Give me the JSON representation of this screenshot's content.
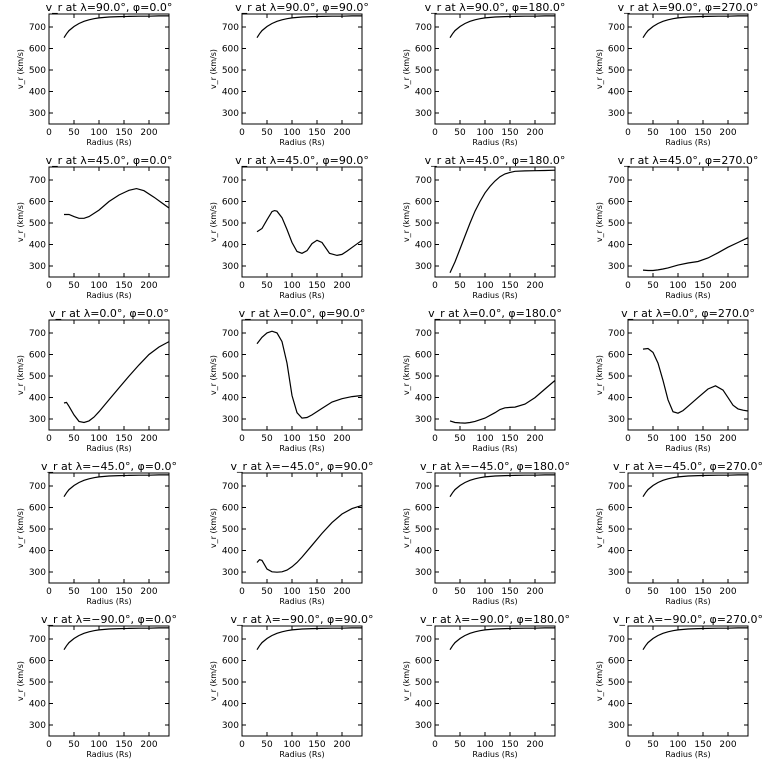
{
  "chart_data": [
    {
      "type": "line",
      "title": "v_r at λ=90.0°, φ=0.0°",
      "xlabel": "Radius (Rs)",
      "ylabel": "v_r (km/s)",
      "xlim": [
        0,
        240
      ],
      "ylim": [
        250,
        760
      ],
      "xticks": [
        0,
        50,
        100,
        150,
        200
      ],
      "yticks": [
        300,
        400,
        500,
        600,
        700
      ],
      "x": [
        30,
        35,
        40,
        50,
        60,
        70,
        80,
        90,
        100,
        120,
        140,
        160,
        180,
        200,
        220,
        240
      ],
      "y": [
        650,
        668,
        683,
        702,
        716,
        726,
        733,
        738,
        742,
        746,
        748,
        749,
        750,
        750,
        751,
        751
      ]
    },
    {
      "type": "line",
      "title": "v_r at λ=90.0°, φ=90.0°",
      "xlabel": "Radius (Rs)",
      "ylabel": "v_r (km/s)",
      "xlim": [
        0,
        240
      ],
      "ylim": [
        250,
        760
      ],
      "xticks": [
        0,
        50,
        100,
        150,
        200
      ],
      "yticks": [
        300,
        400,
        500,
        600,
        700
      ],
      "x": [
        30,
        35,
        40,
        50,
        60,
        70,
        80,
        90,
        100,
        120,
        140,
        160,
        180,
        200,
        220,
        240
      ],
      "y": [
        650,
        668,
        683,
        702,
        716,
        726,
        733,
        738,
        742,
        746,
        748,
        749,
        750,
        750,
        751,
        751
      ]
    },
    {
      "type": "line",
      "title": "v_r at λ=90.0°, φ=180.0°",
      "xlabel": "Radius (Rs)",
      "ylabel": "v_r (km/s)",
      "xlim": [
        0,
        240
      ],
      "ylim": [
        250,
        760
      ],
      "xticks": [
        0,
        50,
        100,
        150,
        200
      ],
      "yticks": [
        300,
        400,
        500,
        600,
        700
      ],
      "x": [
        30,
        35,
        40,
        50,
        60,
        70,
        80,
        90,
        100,
        120,
        140,
        160,
        180,
        200,
        220,
        240
      ],
      "y": [
        650,
        668,
        683,
        702,
        716,
        726,
        733,
        738,
        742,
        746,
        748,
        749,
        750,
        750,
        751,
        751
      ]
    },
    {
      "type": "line",
      "title": "v_r at λ=90.0°, φ=270.0°",
      "xlabel": "Radius (Rs)",
      "ylabel": "v_r (km/s)",
      "xlim": [
        0,
        240
      ],
      "ylim": [
        250,
        760
      ],
      "xticks": [
        0,
        50,
        100,
        150,
        200
      ],
      "yticks": [
        300,
        400,
        500,
        600,
        700
      ],
      "x": [
        30,
        35,
        40,
        50,
        60,
        70,
        80,
        90,
        100,
        120,
        140,
        160,
        180,
        200,
        220,
        240
      ],
      "y": [
        650,
        668,
        683,
        702,
        716,
        726,
        733,
        738,
        742,
        746,
        748,
        749,
        750,
        750,
        751,
        751
      ]
    },
    {
      "type": "line",
      "title": "v_r at λ=45.0°, φ=0.0°",
      "xlabel": "Radius (Rs)",
      "ylabel": "v_r (km/s)",
      "xlim": [
        0,
        240
      ],
      "ylim": [
        250,
        760
      ],
      "xticks": [
        0,
        50,
        100,
        150,
        200
      ],
      "yticks": [
        300,
        400,
        500,
        600,
        700
      ],
      "x": [
        30,
        40,
        50,
        60,
        70,
        80,
        100,
        120,
        140,
        160,
        175,
        190,
        210,
        225,
        240
      ],
      "y": [
        540,
        540,
        530,
        522,
        522,
        530,
        560,
        600,
        630,
        652,
        660,
        650,
        620,
        595,
        570
      ]
    },
    {
      "type": "line",
      "title": "v_r at λ=45.0°, φ=90.0°",
      "xlabel": "Radius (Rs)",
      "ylabel": "v_r (km/s)",
      "xlim": [
        0,
        240
      ],
      "ylim": [
        250,
        760
      ],
      "xticks": [
        0,
        50,
        100,
        150,
        200
      ],
      "yticks": [
        300,
        400,
        500,
        600,
        700
      ],
      "x": [
        30,
        40,
        50,
        60,
        65,
        70,
        80,
        90,
        100,
        110,
        120,
        130,
        140,
        150,
        160,
        175,
        190,
        200,
        210,
        225,
        240
      ],
      "y": [
        460,
        475,
        515,
        553,
        558,
        555,
        525,
        470,
        410,
        368,
        360,
        372,
        405,
        420,
        410,
        360,
        350,
        355,
        370,
        395,
        420
      ]
    },
    {
      "type": "line",
      "title": "v_r at λ=45.0°, φ=180.0°",
      "xlabel": "Radius (Rs)",
      "ylabel": "v_r (km/s)",
      "xlim": [
        0,
        240
      ],
      "ylim": [
        250,
        760
      ],
      "xticks": [
        0,
        50,
        100,
        150,
        200
      ],
      "yticks": [
        300,
        400,
        500,
        600,
        700
      ],
      "x": [
        30,
        40,
        50,
        60,
        70,
        80,
        90,
        100,
        110,
        120,
        130,
        140,
        150,
        160,
        180,
        200,
        220,
        240
      ],
      "y": [
        270,
        320,
        380,
        440,
        500,
        555,
        600,
        640,
        670,
        695,
        715,
        728,
        735,
        740,
        742,
        743,
        744,
        745
      ]
    },
    {
      "type": "line",
      "title": "v_r at λ=45.0°, φ=270.0°",
      "xlabel": "Radius (Rs)",
      "ylabel": "v_r (km/s)",
      "xlim": [
        0,
        240
      ],
      "ylim": [
        250,
        760
      ],
      "xticks": [
        0,
        50,
        100,
        150,
        200
      ],
      "yticks": [
        300,
        400,
        500,
        600,
        700
      ],
      "x": [
        30,
        40,
        50,
        60,
        70,
        80,
        100,
        120,
        140,
        160,
        180,
        200,
        220,
        240
      ],
      "y": [
        282,
        280,
        280,
        283,
        287,
        292,
        305,
        315,
        322,
        338,
        362,
        388,
        410,
        432
      ]
    },
    {
      "type": "line",
      "title": "v_r at λ=0.0°, φ=0.0°",
      "xlabel": "Radius (Rs)",
      "ylabel": "v_r (km/s)",
      "xlim": [
        0,
        240
      ],
      "ylim": [
        250,
        760
      ],
      "xticks": [
        0,
        50,
        100,
        150,
        200
      ],
      "yticks": [
        300,
        400,
        500,
        600,
        700
      ],
      "x": [
        30,
        35,
        40,
        50,
        60,
        70,
        80,
        90,
        100,
        120,
        140,
        160,
        180,
        200,
        220,
        240
      ],
      "y": [
        375,
        378,
        360,
        320,
        290,
        285,
        292,
        310,
        335,
        390,
        445,
        500,
        552,
        600,
        635,
        660
      ]
    },
    {
      "type": "line",
      "title": "v_r at λ=0.0°, φ=90.0°",
      "xlabel": "Radius (Rs)",
      "ylabel": "v_r (km/s)",
      "xlim": [
        0,
        240
      ],
      "ylim": [
        250,
        760
      ],
      "xticks": [
        0,
        50,
        100,
        150,
        200
      ],
      "yticks": [
        300,
        400,
        500,
        600,
        700
      ],
      "x": [
        30,
        40,
        50,
        60,
        70,
        80,
        90,
        100,
        110,
        120,
        130,
        140,
        160,
        180,
        200,
        220,
        240
      ],
      "y": [
        650,
        680,
        700,
        708,
        700,
        660,
        560,
        410,
        330,
        305,
        308,
        320,
        350,
        380,
        395,
        405,
        410
      ]
    },
    {
      "type": "line",
      "title": "v_r at λ=0.0°, φ=180.0°",
      "xlabel": "Radius (Rs)",
      "ylabel": "v_r (km/s)",
      "xlim": [
        0,
        240
      ],
      "ylim": [
        250,
        760
      ],
      "xticks": [
        0,
        50,
        100,
        150,
        200
      ],
      "yticks": [
        300,
        400,
        500,
        600,
        700
      ],
      "x": [
        30,
        40,
        50,
        60,
        70,
        80,
        100,
        120,
        130,
        140,
        150,
        160,
        180,
        200,
        220,
        240
      ],
      "y": [
        292,
        285,
        283,
        282,
        285,
        290,
        305,
        330,
        345,
        353,
        355,
        356,
        370,
        400,
        440,
        480
      ]
    },
    {
      "type": "line",
      "title": "v_r at λ=0.0°, φ=270.0°",
      "xlabel": "Radius (Rs)",
      "ylabel": "v_r (km/s)",
      "xlim": [
        0,
        240
      ],
      "ylim": [
        250,
        760
      ],
      "xticks": [
        0,
        50,
        100,
        150,
        200
      ],
      "yticks": [
        300,
        400,
        500,
        600,
        700
      ],
      "x": [
        30,
        40,
        50,
        60,
        70,
        80,
        90,
        100,
        110,
        120,
        140,
        160,
        175,
        190,
        200,
        210,
        220,
        230,
        240
      ],
      "y": [
        625,
        628,
        610,
        560,
        480,
        390,
        335,
        328,
        340,
        360,
        400,
        440,
        455,
        435,
        400,
        365,
        348,
        342,
        338
      ]
    },
    {
      "type": "line",
      "title": "v_r at λ=−45.0°, φ=0.0°",
      "xlabel": "Radius (Rs)",
      "ylabel": "v_r (km/s)",
      "xlim": [
        0,
        240
      ],
      "ylim": [
        250,
        760
      ],
      "xticks": [
        0,
        50,
        100,
        150,
        200
      ],
      "yticks": [
        300,
        400,
        500,
        600,
        700
      ],
      "x": [
        30,
        35,
        40,
        50,
        60,
        70,
        80,
        90,
        100,
        120,
        140,
        160,
        180,
        200,
        220,
        240
      ],
      "y": [
        650,
        668,
        683,
        702,
        716,
        726,
        733,
        738,
        742,
        746,
        748,
        749,
        750,
        750,
        751,
        751
      ]
    },
    {
      "type": "line",
      "title": "v_r at λ=−45.0°, φ=90.0°",
      "xlabel": "Radius (Rs)",
      "ylabel": "v_r (km/s)",
      "xlim": [
        0,
        240
      ],
      "ylim": [
        250,
        760
      ],
      "xticks": [
        0,
        50,
        100,
        150,
        200
      ],
      "yticks": [
        300,
        400,
        500,
        600,
        700
      ],
      "x": [
        30,
        35,
        40,
        45,
        50,
        60,
        70,
        80,
        90,
        100,
        110,
        120,
        140,
        160,
        180,
        200,
        220,
        240
      ],
      "y": [
        345,
        358,
        355,
        335,
        315,
        302,
        300,
        302,
        310,
        325,
        345,
        370,
        425,
        480,
        530,
        570,
        595,
        610
      ]
    },
    {
      "type": "line",
      "title": "v_r at λ=−45.0°, φ=180.0°",
      "xlabel": "Radius (Rs)",
      "ylabel": "v_r (km/s)",
      "xlim": [
        0,
        240
      ],
      "ylim": [
        250,
        760
      ],
      "xticks": [
        0,
        50,
        100,
        150,
        200
      ],
      "yticks": [
        300,
        400,
        500,
        600,
        700
      ],
      "x": [
        30,
        35,
        40,
        50,
        60,
        70,
        80,
        90,
        100,
        120,
        140,
        160,
        180,
        200,
        220,
        240
      ],
      "y": [
        650,
        668,
        683,
        702,
        716,
        726,
        733,
        738,
        742,
        746,
        748,
        749,
        750,
        750,
        751,
        751
      ]
    },
    {
      "type": "line",
      "title": "v_r at λ=−45.0°, φ=270.0°",
      "xlabel": "Radius (Rs)",
      "ylabel": "v_r (km/s)",
      "xlim": [
        0,
        240
      ],
      "ylim": [
        250,
        760
      ],
      "xticks": [
        0,
        50,
        100,
        150,
        200
      ],
      "yticks": [
        300,
        400,
        500,
        600,
        700
      ],
      "x": [
        30,
        35,
        40,
        50,
        60,
        70,
        80,
        90,
        100,
        120,
        140,
        160,
        180,
        200,
        220,
        240
      ],
      "y": [
        650,
        668,
        683,
        702,
        716,
        726,
        733,
        738,
        742,
        746,
        748,
        749,
        750,
        750,
        751,
        751
      ]
    },
    {
      "type": "line",
      "title": "v_r at λ=−90.0°, φ=0.0°",
      "xlabel": "Radius (Rs)",
      "ylabel": "v_r (km/s)",
      "xlim": [
        0,
        240
      ],
      "ylim": [
        250,
        760
      ],
      "xticks": [
        0,
        50,
        100,
        150,
        200
      ],
      "yticks": [
        300,
        400,
        500,
        600,
        700
      ],
      "x": [
        30,
        35,
        40,
        50,
        60,
        70,
        80,
        90,
        100,
        120,
        140,
        160,
        180,
        200,
        220,
        240
      ],
      "y": [
        650,
        668,
        683,
        702,
        716,
        726,
        733,
        738,
        742,
        746,
        748,
        749,
        750,
        750,
        751,
        751
      ]
    },
    {
      "type": "line",
      "title": "v_r at λ=−90.0°, φ=90.0°",
      "xlabel": "Radius (Rs)",
      "ylabel": "v_r (km/s)",
      "xlim": [
        0,
        240
      ],
      "ylim": [
        250,
        760
      ],
      "xticks": [
        0,
        50,
        100,
        150,
        200
      ],
      "yticks": [
        300,
        400,
        500,
        600,
        700
      ],
      "x": [
        30,
        35,
        40,
        50,
        60,
        70,
        80,
        90,
        100,
        120,
        140,
        160,
        180,
        200,
        220,
        240
      ],
      "y": [
        650,
        668,
        683,
        702,
        716,
        726,
        733,
        738,
        742,
        746,
        748,
        749,
        750,
        750,
        751,
        751
      ]
    },
    {
      "type": "line",
      "title": "v_r at λ=−90.0°, φ=180.0°",
      "xlabel": "Radius (Rs)",
      "ylabel": "v_r (km/s)",
      "xlim": [
        0,
        240
      ],
      "ylim": [
        250,
        760
      ],
      "xticks": [
        0,
        50,
        100,
        150,
        200
      ],
      "yticks": [
        300,
        400,
        500,
        600,
        700
      ],
      "x": [
        30,
        35,
        40,
        50,
        60,
        70,
        80,
        90,
        100,
        120,
        140,
        160,
        180,
        200,
        220,
        240
      ],
      "y": [
        650,
        668,
        683,
        702,
        716,
        726,
        733,
        738,
        742,
        746,
        748,
        749,
        750,
        750,
        751,
        751
      ]
    },
    {
      "type": "line",
      "title": "v_r at λ=−90.0°, φ=270.0°",
      "xlabel": "Radius (Rs)",
      "ylabel": "v_r (km/s)",
      "xlim": [
        0,
        240
      ],
      "ylim": [
        250,
        760
      ],
      "xticks": [
        0,
        50,
        100,
        150,
        200
      ],
      "yticks": [
        300,
        400,
        500,
        600,
        700
      ],
      "x": [
        30,
        35,
        40,
        50,
        60,
        70,
        80,
        90,
        100,
        120,
        140,
        160,
        180,
        200,
        220,
        240
      ],
      "y": [
        650,
        668,
        683,
        702,
        716,
        726,
        733,
        738,
        742,
        746,
        748,
        749,
        750,
        750,
        751,
        751
      ]
    }
  ]
}
